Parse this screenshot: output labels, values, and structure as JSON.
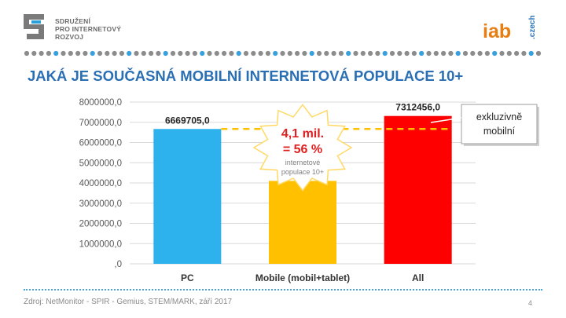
{
  "header": {
    "org_lines": [
      "SDRUŽENÍ",
      "PRO INTERNETOVÝ",
      "ROZVOJ"
    ],
    "iab_main": "iab",
    "iab_suffix": ".czech"
  },
  "title": "JAKÁ JE SOUČASNÁ MOBILNÍ INTERNETOVÁ POPULACE 10+",
  "chart_data": {
    "type": "bar",
    "categories": [
      "PC",
      "Mobile (mobil+tablet)",
      "All"
    ],
    "values": [
      6669705.0,
      4100000.0,
      7312456.0
    ],
    "data_labels": [
      "6669705,0",
      "",
      "7312456,0"
    ],
    "ylim": [
      0,
      8000000
    ],
    "yticks": [
      ",0",
      "1000000,0",
      "2000000,0",
      "3000000,0",
      "4000000,0",
      "5000000,0",
      "6000000,0",
      "7000000,0",
      "8000000,0"
    ],
    "colors": [
      "#2db2ee",
      "#ffc000",
      "#ff0000"
    ],
    "grid": true,
    "reference_line_value": 6669705.0,
    "reference_line_color": "#ffc000",
    "callout": {
      "line1": "4,1 mil.",
      "line2": "= 56 %",
      "line3": "internetové",
      "line4": "populace 10+"
    },
    "note_box": {
      "line1": "exkluzivně",
      "line2": "mobilní"
    }
  },
  "footer": {
    "source": "Zdroj: NetMonitor - SPIR - Gemius,  STEM/MARK, září 2017",
    "page": "4"
  },
  "colors": {
    "title": "#2a6fb3",
    "iab": "#e87d12",
    "czech": "#2a74b8"
  }
}
